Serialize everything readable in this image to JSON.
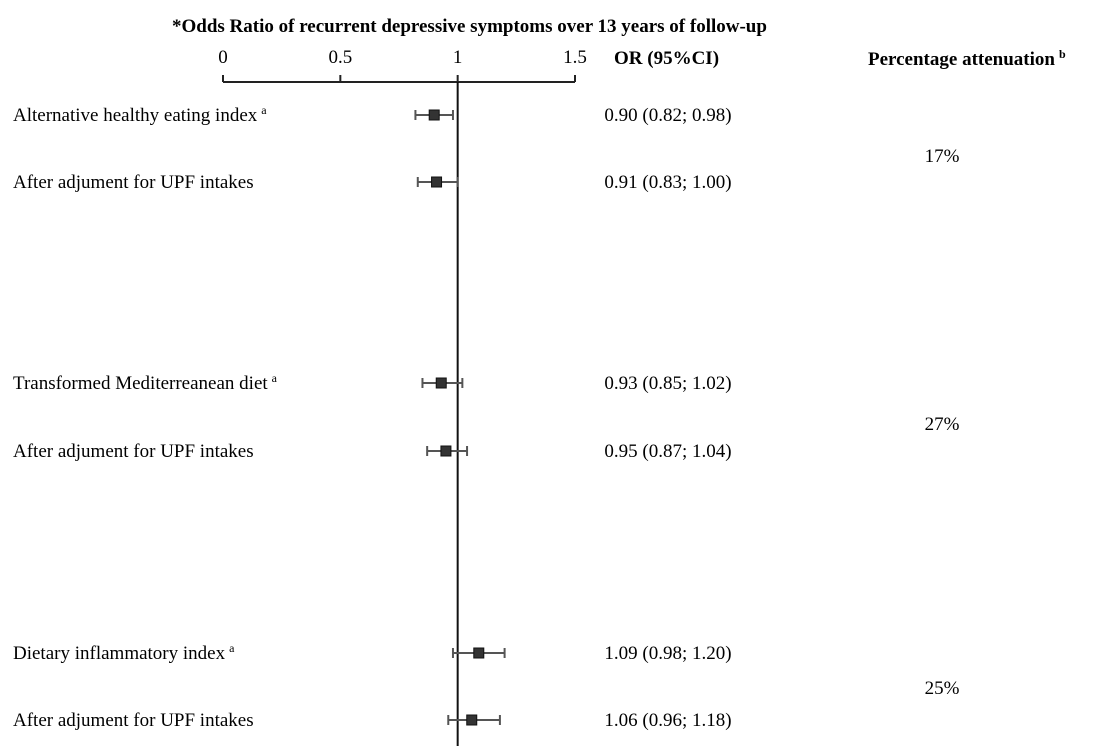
{
  "chart_data": {
    "type": "forest",
    "title": "*Odds Ratio of recurrent depressive symptoms over 13 years of follow-up",
    "xlim": [
      0,
      1.5
    ],
    "x_ticks": [
      "0",
      "0.5",
      "1",
      "1.5"
    ],
    "x_tick_values": [
      0,
      0.5,
      1,
      1.5
    ],
    "reference_line": 1,
    "or_header": "OR (95%CI)",
    "attenuation_header": "Percentage attenuation",
    "attenuation_header_sup": "b",
    "rows": [
      {
        "label": "Alternative healthy eating index",
        "sup": "a",
        "or": 0.9,
        "lo": 0.82,
        "hi": 0.98,
        "or_text": "0.90 (0.82; 0.98)"
      },
      {
        "label": "After adjument for UPF intakes",
        "sup": "",
        "or": 0.91,
        "lo": 0.83,
        "hi": 1.0,
        "or_text": "0.91 (0.83; 1.00)"
      },
      {
        "label": "Transformed Mediterreanean diet",
        "sup": "a",
        "or": 0.93,
        "lo": 0.85,
        "hi": 1.02,
        "or_text": "0.93 (0.85; 1.02)"
      },
      {
        "label": "After adjument for UPF intakes",
        "sup": "",
        "or": 0.95,
        "lo": 0.87,
        "hi": 1.04,
        "or_text": "0.95 (0.87; 1.04)"
      },
      {
        "label": "Dietary inflammatory index",
        "sup": "a",
        "or": 1.09,
        "lo": 0.98,
        "hi": 1.2,
        "or_text": "1.09 (0.98; 1.20)"
      },
      {
        "label": "After adjument for UPF intakes",
        "sup": "",
        "or": 1.06,
        "lo": 0.96,
        "hi": 1.18,
        "or_text": "1.06 (0.96; 1.18)"
      }
    ],
    "attenuations": [
      "17%",
      "27%",
      "25%"
    ]
  }
}
